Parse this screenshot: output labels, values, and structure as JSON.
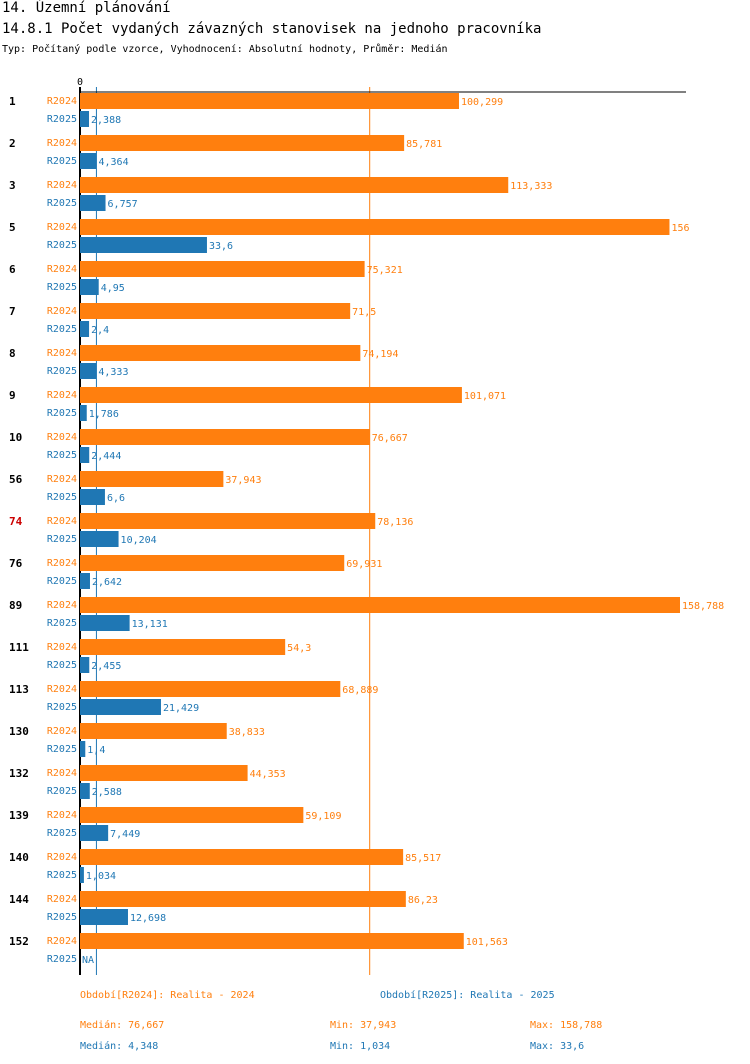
{
  "header": {
    "section": "14. Územní plánování",
    "title": "14.8.1 Počet vydaných závazných stanovisek na jednoho pracovníka",
    "subtitle": "Typ: Počítaný podle vzorce, Vyhodnocení: Absolutní hodnoty, Průměr: Medián"
  },
  "colors": {
    "r2024": "#ff7f0e",
    "r2025": "#1f77b4",
    "highlight": "#cc0000"
  },
  "chart_data": {
    "type": "bar",
    "orientation": "horizontal",
    "axis_zero_label": "0",
    "xlim": [
      0,
      158.788
    ],
    "series_names": [
      "R2024",
      "R2025"
    ],
    "categories": [
      "1",
      "2",
      "3",
      "5",
      "6",
      "7",
      "8",
      "9",
      "10",
      "56",
      "74",
      "76",
      "89",
      "111",
      "113",
      "130",
      "132",
      "139",
      "140",
      "144",
      "152"
    ],
    "highlight_category": "74",
    "series": [
      {
        "name": "R2024",
        "values": [
          100.299,
          85.781,
          113.333,
          156,
          75.321,
          71.5,
          74.194,
          101.071,
          76.667,
          37.943,
          78.136,
          69.931,
          158.788,
          54.3,
          68.889,
          38.833,
          44.353,
          59.109,
          85.517,
          86.23,
          101.563
        ],
        "labels": [
          "100,299",
          "85,781",
          "113,333",
          "156",
          "75,321",
          "71,5",
          "74,194",
          "101,071",
          "76,667",
          "37,943",
          "78,136",
          "69,931",
          "158,788",
          "54,3",
          "68,889",
          "38,833",
          "44,353",
          "59,109",
          "85,517",
          "86,23",
          "101,563"
        ]
      },
      {
        "name": "R2025",
        "values": [
          2.388,
          4.364,
          6.757,
          33.6,
          4.95,
          2.4,
          4.333,
          1.786,
          2.444,
          6.6,
          10.204,
          2.642,
          13.131,
          2.455,
          21.429,
          1.4,
          2.588,
          7.449,
          1.034,
          12.698,
          null
        ],
        "labels": [
          "2,388",
          "4,364",
          "6,757",
          "33,6",
          "4,95",
          "2,4",
          "4,333",
          "1,786",
          "2,444",
          "6,6",
          "10,204",
          "2,642",
          "13,131",
          "2,455",
          "21,429",
          "1,4",
          "2,588",
          "7,449",
          "1,034",
          "12,698",
          "NA"
        ]
      }
    ],
    "median_lines": {
      "R2024": 76.667,
      "R2025": 4.348
    }
  },
  "legend": {
    "r2024_label": "Období[R2024]: Realita - 2024",
    "r2025_label": "Období[R2025]: Realita - 2025",
    "r2024_median": "Medián: 76,667",
    "r2024_min": "Min: 37,943",
    "r2024_max": "Max: 158,788",
    "r2025_median": "Medián: 4,348",
    "r2025_min": "Min: 1,034",
    "r2025_max": "Max: 33,6"
  }
}
